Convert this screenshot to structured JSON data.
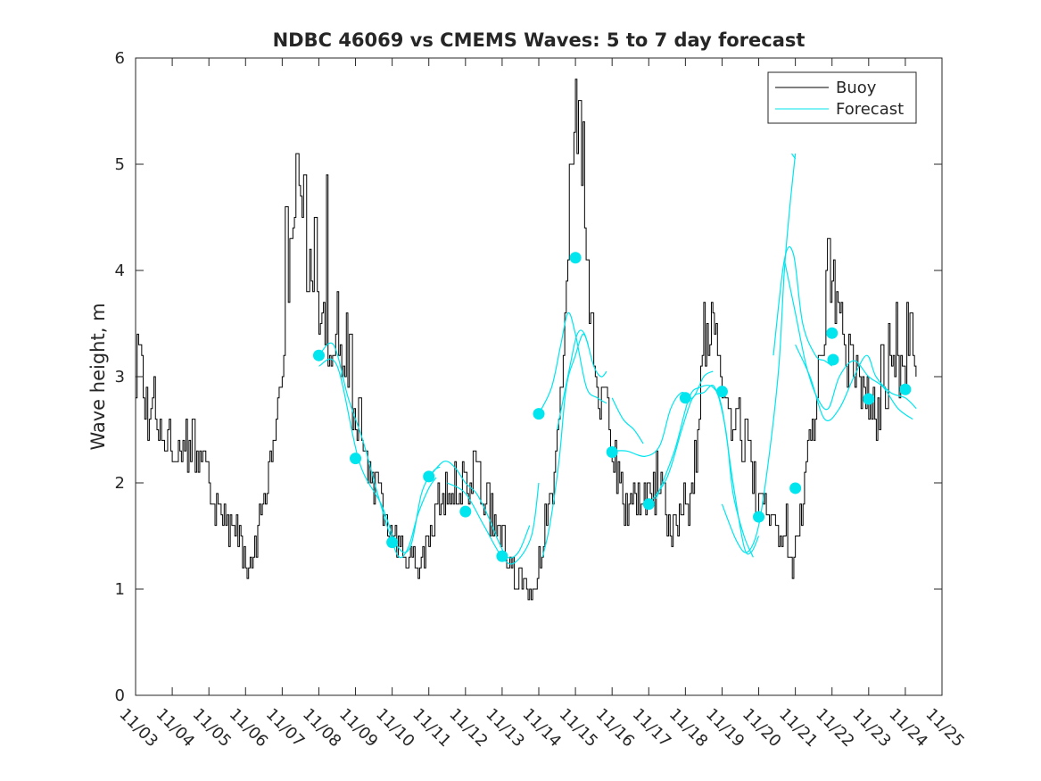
{
  "chart_data": {
    "type": "line",
    "title": "NDBC 46069 vs CMEMS Waves: 5 to 7 day forecast",
    "xlabel": "",
    "ylabel": "Wave height, m",
    "xlim": [
      0,
      22
    ],
    "ylim": [
      0,
      6
    ],
    "x_tick_labels": [
      "11/03",
      "11/04",
      "11/05",
      "11/06",
      "11/07",
      "11/08",
      "11/09",
      "11/10",
      "11/11",
      "11/12",
      "11/13",
      "11/14",
      "11/15",
      "11/16",
      "11/17",
      "11/18",
      "11/19",
      "11/20",
      "11/21",
      "11/22",
      "11/23",
      "11/24",
      "11/25"
    ],
    "y_ticks": [
      0,
      1,
      2,
      3,
      4,
      5,
      6
    ],
    "x_units": "days since 11/03",
    "grid": false,
    "legend": {
      "location": "top-right",
      "entries": [
        "Buoy",
        "Forecast"
      ]
    },
    "colors": {
      "buoy": "#000000",
      "forecast": "#00e5ee",
      "marker": "#00e5ee",
      "axis": "#262626"
    },
    "buoy_knots": [
      [
        0.0,
        3.0
      ],
      [
        0.1,
        3.3
      ],
      [
        0.3,
        2.6
      ],
      [
        0.5,
        2.6
      ],
      [
        0.8,
        2.4
      ],
      [
        1.0,
        2.4
      ],
      [
        1.3,
        2.3
      ],
      [
        1.5,
        2.4
      ],
      [
        1.8,
        2.2
      ],
      [
        2.0,
        2.0
      ],
      [
        2.2,
        1.7
      ],
      [
        2.4,
        1.6
      ],
      [
        2.6,
        1.6
      ],
      [
        2.8,
        1.5
      ],
      [
        3.0,
        1.2
      ],
      [
        3.1,
        1.2
      ],
      [
        3.3,
        1.5
      ],
      [
        3.5,
        1.8
      ],
      [
        3.7,
        2.4
      ],
      [
        3.9,
        3.0
      ],
      [
        4.1,
        3.5
      ],
      [
        4.2,
        4.2
      ],
      [
        4.35,
        4.7
      ],
      [
        4.45,
        4.6
      ],
      [
        4.55,
        4.3
      ],
      [
        4.7,
        3.8
      ],
      [
        4.9,
        3.7
      ],
      [
        5.1,
        3.5
      ],
      [
        5.3,
        3.2
      ],
      [
        5.5,
        3.1
      ],
      [
        5.6,
        3.1
      ],
      [
        5.75,
        3.0
      ],
      [
        5.85,
        2.7
      ],
      [
        6.0,
        2.6
      ],
      [
        6.2,
        2.3
      ],
      [
        6.4,
        2.1
      ],
      [
        6.6,
        2.0
      ],
      [
        6.8,
        1.7
      ],
      [
        7.0,
        1.5
      ],
      [
        7.2,
        1.4
      ],
      [
        7.4,
        1.3
      ],
      [
        7.6,
        1.3
      ],
      [
        7.8,
        1.2
      ],
      [
        8.0,
        1.5
      ],
      [
        8.2,
        1.8
      ],
      [
        8.5,
        2.0
      ],
      [
        8.8,
        2.0
      ],
      [
        9.0,
        2.0
      ],
      [
        9.3,
        2.1
      ],
      [
        9.5,
        1.9
      ],
      [
        9.8,
        1.6
      ],
      [
        10.0,
        1.5
      ],
      [
        10.2,
        1.3
      ],
      [
        10.4,
        1.1
      ],
      [
        10.7,
        1.0
      ],
      [
        10.9,
        1.0
      ],
      [
        11.0,
        1.3
      ],
      [
        11.2,
        1.7
      ],
      [
        11.4,
        2.1
      ],
      [
        11.55,
        2.6
      ],
      [
        11.7,
        3.3
      ],
      [
        11.8,
        4.2
      ],
      [
        11.9,
        4.9
      ],
      [
        11.97,
        5.3
      ],
      [
        12.05,
        5.3
      ],
      [
        12.15,
        4.7
      ],
      [
        12.3,
        4.1
      ],
      [
        12.5,
        3.1
      ],
      [
        12.7,
        2.8
      ],
      [
        12.9,
        2.6
      ],
      [
        13.1,
        2.1
      ],
      [
        13.3,
        1.8
      ],
      [
        13.5,
        1.8
      ],
      [
        13.7,
        1.9
      ],
      [
        14.0,
        1.8
      ],
      [
        14.3,
        1.9
      ],
      [
        14.5,
        1.7
      ],
      [
        14.7,
        1.6
      ],
      [
        14.9,
        1.7
      ],
      [
        15.1,
        1.8
      ],
      [
        15.3,
        2.3
      ],
      [
        15.5,
        3.2
      ],
      [
        15.65,
        3.5
      ],
      [
        15.8,
        3.3
      ],
      [
        16.0,
        3.0
      ],
      [
        16.2,
        2.7
      ],
      [
        16.4,
        2.5
      ],
      [
        16.6,
        2.4
      ],
      [
        16.8,
        2.1
      ],
      [
        17.0,
        1.8
      ],
      [
        17.2,
        1.7
      ],
      [
        17.4,
        1.6
      ],
      [
        17.6,
        1.5
      ],
      [
        17.8,
        1.3
      ],
      [
        17.9,
        1.2
      ],
      [
        18.0,
        1.4
      ],
      [
        18.1,
        1.7
      ],
      [
        18.3,
        2.2
      ],
      [
        18.5,
        2.6
      ],
      [
        18.7,
        3.0
      ],
      [
        18.85,
        3.8
      ],
      [
        18.95,
        4.0
      ],
      [
        19.05,
        3.8
      ],
      [
        19.2,
        3.5
      ],
      [
        19.4,
        3.2
      ],
      [
        19.6,
        3.1
      ],
      [
        19.8,
        2.8
      ],
      [
        20.0,
        2.7
      ],
      [
        20.2,
        2.6
      ],
      [
        20.4,
        2.8
      ],
      [
        20.6,
        3.0
      ],
      [
        20.8,
        3.1
      ],
      [
        21.0,
        3.1
      ],
      [
        21.1,
        3.3
      ],
      [
        21.2,
        3.0
      ],
      [
        21.3,
        3.0
      ]
    ],
    "buoy_spikes": [
      [
        0.05,
        3.4
      ],
      [
        0.5,
        3.0
      ],
      [
        4.1,
        4.6
      ],
      [
        4.4,
        5.1
      ],
      [
        4.6,
        4.9
      ],
      [
        4.75,
        4.2
      ],
      [
        4.9,
        4.5
      ],
      [
        5.2,
        4.9
      ],
      [
        5.5,
        3.8
      ],
      [
        5.75,
        3.6
      ],
      [
        5.85,
        3.4
      ],
      [
        6.1,
        2.8
      ],
      [
        8.7,
        2.2
      ],
      [
        9.25,
        2.3
      ],
      [
        11.6,
        2.9
      ],
      [
        11.85,
        5.0
      ],
      [
        12.0,
        5.8
      ],
      [
        12.1,
        5.6
      ],
      [
        12.2,
        5.4
      ],
      [
        12.45,
        3.6
      ],
      [
        14.2,
        2.3
      ],
      [
        14.95,
        2.0
      ],
      [
        15.5,
        3.7
      ],
      [
        15.7,
        3.7
      ],
      [
        16.45,
        2.8
      ],
      [
        16.65,
        2.6
      ],
      [
        17.75,
        1.8
      ],
      [
        18.65,
        3.2
      ],
      [
        18.9,
        4.3
      ],
      [
        19.05,
        4.1
      ],
      [
        19.25,
        3.7
      ],
      [
        19.45,
        3.4
      ],
      [
        20.35,
        3.3
      ],
      [
        20.55,
        3.5
      ],
      [
        20.75,
        3.7
      ],
      [
        21.05,
        3.7
      ],
      [
        21.15,
        3.6
      ]
    ],
    "forecast_segments": [
      [
        [
          5.0,
          3.2
        ],
        [
          5.4,
          3.3
        ],
        [
          5.8,
          2.8
        ],
        [
          6.2,
          2.4
        ],
        [
          6.6,
          1.9
        ],
        [
          6.95,
          1.5
        ],
        [
          7.2,
          1.3
        ],
        [
          7.45,
          1.4
        ],
        [
          7.7,
          1.7
        ],
        [
          8.0,
          1.95
        ],
        [
          8.2,
          2.05
        ]
      ],
      [
        [
          5.0,
          3.1
        ],
        [
          5.5,
          3.1
        ],
        [
          6.1,
          2.2
        ],
        [
          6.7,
          1.8
        ],
        [
          7.15,
          1.4
        ],
        [
          7.5,
          1.4
        ],
        [
          7.8,
          1.9
        ],
        [
          8.1,
          2.1
        ],
        [
          8.3,
          2.15
        ]
      ],
      [
        [
          8.0,
          2.05
        ],
        [
          8.4,
          2.2
        ],
        [
          8.7,
          2.15
        ],
        [
          9.0,
          2.0
        ],
        [
          9.3,
          1.9
        ],
        [
          9.6,
          1.7
        ],
        [
          9.9,
          1.45
        ],
        [
          10.15,
          1.3
        ],
        [
          10.45,
          1.35
        ],
        [
          10.75,
          1.6
        ]
      ],
      [
        [
          8.5,
          2.0
        ],
        [
          9.0,
          1.9
        ],
        [
          9.5,
          1.6
        ],
        [
          10.0,
          1.3
        ],
        [
          10.35,
          1.25
        ],
        [
          10.8,
          1.5
        ],
        [
          11.0,
          2.0
        ]
      ],
      [
        [
          11.0,
          2.65
        ],
        [
          11.35,
          2.9
        ],
        [
          11.6,
          3.3
        ],
        [
          11.8,
          3.6
        ],
        [
          12.0,
          3.4
        ],
        [
          12.3,
          2.9
        ],
        [
          12.6,
          2.8
        ],
        [
          12.85,
          2.75
        ]
      ],
      [
        [
          11.5,
          2.5
        ],
        [
          11.85,
          3.1
        ],
        [
          12.05,
          3.4
        ],
        [
          12.25,
          3.4
        ],
        [
          12.5,
          3.1
        ],
        [
          12.7,
          3.0
        ],
        [
          12.85,
          3.05
        ]
      ],
      [
        [
          11.1,
          1.3
        ],
        [
          11.3,
          1.6
        ],
        [
          11.55,
          2.2
        ],
        [
          11.75,
          2.9
        ],
        [
          12.0,
          3.2
        ],
        [
          12.2,
          3.4
        ],
        [
          12.35,
          3.3
        ]
      ],
      [
        [
          13.0,
          2.3
        ],
        [
          13.4,
          2.3
        ],
        [
          13.9,
          2.25
        ],
        [
          14.3,
          2.35
        ],
        [
          14.6,
          2.7
        ],
        [
          14.9,
          2.85
        ],
        [
          15.2,
          2.8
        ],
        [
          15.5,
          3.0
        ],
        [
          15.75,
          3.05
        ]
      ],
      [
        [
          13.0,
          2.8
        ],
        [
          13.3,
          2.6
        ],
        [
          13.6,
          2.5
        ],
        [
          13.85,
          2.37
        ]
      ],
      [
        [
          14.0,
          1.8
        ],
        [
          14.5,
          2.05
        ],
        [
          14.9,
          2.5
        ],
        [
          15.2,
          2.8
        ],
        [
          15.5,
          2.85
        ],
        [
          15.8,
          2.9
        ],
        [
          16.1,
          2.5
        ],
        [
          16.3,
          1.9
        ],
        [
          16.6,
          1.5
        ],
        [
          16.85,
          1.3
        ]
      ],
      [
        [
          14.2,
          1.85
        ],
        [
          14.7,
          2.3
        ],
        [
          15.1,
          2.8
        ],
        [
          15.4,
          2.9
        ],
        [
          15.75,
          2.9
        ],
        [
          16.0,
          2.7
        ],
        [
          16.3,
          2.0
        ],
        [
          16.6,
          1.4
        ],
        [
          16.8,
          1.35
        ],
        [
          17.0,
          1.5
        ]
      ],
      [
        [
          16.0,
          1.8
        ],
        [
          16.4,
          1.45
        ],
        [
          16.7,
          1.35
        ],
        [
          17.0,
          1.6
        ],
        [
          17.3,
          2.3
        ],
        [
          17.55,
          3.1
        ],
        [
          17.7,
          4.0
        ],
        [
          17.85,
          4.6
        ],
        [
          18.0,
          5.1
        ]
      ],
      [
        [
          17.9,
          5.1
        ],
        [
          18.0,
          5.05
        ]
      ],
      [
        [
          17.4,
          3.2
        ],
        [
          17.7,
          4.1
        ],
        [
          17.95,
          4.15
        ],
        [
          18.2,
          3.5
        ],
        [
          18.55,
          3.2
        ],
        [
          18.8,
          3.15
        ],
        [
          19.0,
          3.1
        ]
      ],
      [
        [
          17.7,
          4.1
        ],
        [
          18.0,
          3.6
        ],
        [
          18.3,
          3.1
        ],
        [
          18.6,
          2.8
        ],
        [
          18.9,
          2.7
        ],
        [
          19.2,
          3.0
        ],
        [
          19.6,
          3.15
        ],
        [
          20.0,
          3.0
        ],
        [
          20.4,
          2.9
        ],
        [
          20.8,
          2.7
        ],
        [
          21.2,
          2.6
        ]
      ],
      [
        [
          18.0,
          3.3
        ],
        [
          18.4,
          3.0
        ],
        [
          18.8,
          2.6
        ],
        [
          19.2,
          2.7
        ],
        [
          19.6,
          3.0
        ],
        [
          19.95,
          3.2
        ],
        [
          20.2,
          3.0
        ],
        [
          20.6,
          2.85
        ],
        [
          21.0,
          2.8
        ],
        [
          21.3,
          2.7
        ]
      ]
    ],
    "forecast_markers": [
      [
        5.0,
        3.2
      ],
      [
        6.0,
        2.23
      ],
      [
        7.0,
        1.44
      ],
      [
        8.0,
        2.06
      ],
      [
        9.0,
        1.73
      ],
      [
        10.0,
        1.31
      ],
      [
        11.0,
        2.65
      ],
      [
        12.0,
        4.12
      ],
      [
        13.0,
        2.29
      ],
      [
        14.0,
        1.8
      ],
      [
        15.0,
        2.8
      ],
      [
        16.0,
        2.86
      ],
      [
        17.0,
        1.68
      ],
      [
        18.0,
        1.95
      ],
      [
        19.0,
        3.41
      ],
      [
        19.03,
        3.16
      ],
      [
        20.0,
        2.79
      ],
      [
        21.0,
        2.88
      ]
    ]
  }
}
